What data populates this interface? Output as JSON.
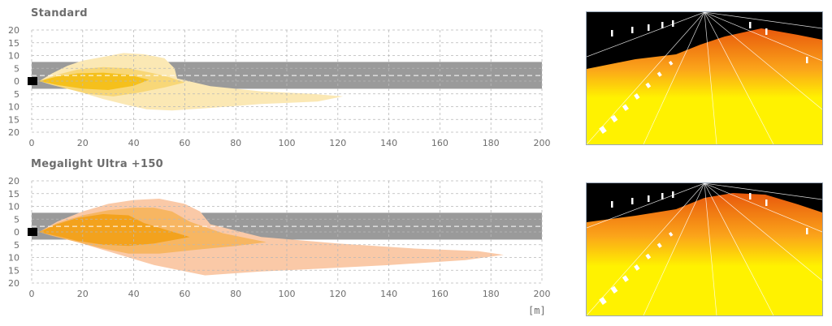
{
  "units_label": "[m]",
  "colors": {
    "road": "#9a9a9a",
    "grid": "#b8b8b8",
    "standard_outer": "#fbe8b4",
    "standard_mid": "#f8d777",
    "standard_inner": "#f5c01c",
    "ultra_outer": "#fac9a7",
    "ultra_mid": "#f7b662",
    "ultra_inner": "#f3a21d",
    "road_view_sky": "#000000",
    "road_view_light": "#fff200",
    "road_view_edge": "#e8580c"
  },
  "chart_data": [
    {
      "type": "area",
      "title": "Standard",
      "xlabel": "[m]",
      "ylabel": "",
      "xlim": [
        0,
        200
      ],
      "ylim": [
        -20,
        20
      ],
      "x_ticks": [
        0,
        20,
        40,
        60,
        80,
        100,
        120,
        140,
        160,
        180,
        200
      ],
      "y_ticks": [
        20,
        15,
        10,
        5,
        0,
        5,
        10,
        15,
        20
      ],
      "road_band": [
        -3,
        7.5
      ],
      "centerline": 2.2,
      "series": [
        {
          "level": "outer",
          "points": [
            [
              3,
              0
            ],
            [
              8,
              3
            ],
            [
              14,
              6
            ],
            [
              20,
              8
            ],
            [
              28,
              9.5
            ],
            [
              36,
              11
            ],
            [
              44,
              10.5
            ],
            [
              52,
              9
            ],
            [
              56,
              5
            ],
            [
              57,
              1
            ],
            [
              70,
              -2
            ],
            [
              90,
              -4
            ],
            [
              110,
              -5
            ],
            [
              122,
              -6
            ],
            [
              112,
              -8
            ],
            [
              90,
              -9
            ],
            [
              70,
              -10.5
            ],
            [
              55,
              -11.5
            ],
            [
              45,
              -11
            ],
            [
              38,
              -9.5
            ],
            [
              28,
              -7
            ],
            [
              18,
              -4
            ],
            [
              8,
              -1.5
            ],
            [
              3,
              0
            ]
          ]
        },
        {
          "level": "mid",
          "points": [
            [
              3,
              0
            ],
            [
              10,
              2.5
            ],
            [
              18,
              4.5
            ],
            [
              28,
              5.5
            ],
            [
              38,
              5
            ],
            [
              48,
              3
            ],
            [
              54,
              1.5
            ],
            [
              60,
              -0.5
            ],
            [
              52,
              -2.5
            ],
            [
              42,
              -4.5
            ],
            [
              32,
              -6
            ],
            [
              22,
              -5
            ],
            [
              12,
              -2.5
            ],
            [
              3,
              0
            ]
          ]
        },
        {
          "level": "inner",
          "points": [
            [
              3,
              0
            ],
            [
              10,
              1.8
            ],
            [
              18,
              3
            ],
            [
              28,
              3.3
            ],
            [
              38,
              2.5
            ],
            [
              46,
              0.5
            ],
            [
              40,
              -1.8
            ],
            [
              30,
              -3.5
            ],
            [
              20,
              -3
            ],
            [
              10,
              -1.5
            ],
            [
              3,
              0
            ]
          ]
        }
      ]
    },
    {
      "type": "area",
      "title": "Megalight Ultra +150",
      "xlabel": "[m]",
      "ylabel": "",
      "xlim": [
        0,
        200
      ],
      "ylim": [
        -20,
        20
      ],
      "x_ticks": [
        0,
        20,
        40,
        60,
        80,
        100,
        120,
        140,
        160,
        180,
        200
      ],
      "y_ticks": [
        20,
        15,
        10,
        5,
        0,
        5,
        10,
        15,
        20
      ],
      "road_band": [
        -3,
        7.5
      ],
      "centerline": 2.2,
      "series": [
        {
          "level": "outer",
          "points": [
            [
              3,
              0
            ],
            [
              10,
              4
            ],
            [
              20,
              8
            ],
            [
              30,
              11
            ],
            [
              40,
              12.5
            ],
            [
              50,
              13
            ],
            [
              60,
              11
            ],
            [
              66,
              8
            ],
            [
              70,
              3
            ],
            [
              90,
              -2
            ],
            [
              120,
              -4.5
            ],
            [
              150,
              -6.5
            ],
            [
              175,
              -7.5
            ],
            [
              185,
              -9
            ],
            [
              170,
              -11
            ],
            [
              140,
              -13
            ],
            [
              110,
              -14.5
            ],
            [
              90,
              -15.5
            ],
            [
              75,
              -16.5
            ],
            [
              68,
              -17
            ],
            [
              58,
              -15
            ],
            [
              48,
              -13
            ],
            [
              38,
              -10
            ],
            [
              28,
              -7
            ],
            [
              18,
              -4
            ],
            [
              8,
              -1.5
            ],
            [
              3,
              0
            ]
          ]
        },
        {
          "level": "mid",
          "points": [
            [
              3,
              0
            ],
            [
              10,
              3.5
            ],
            [
              20,
              6.5
            ],
            [
              30,
              8.5
            ],
            [
              40,
              9.5
            ],
            [
              48,
              9.5
            ],
            [
              55,
              8
            ],
            [
              62,
              4
            ],
            [
              75,
              -0.5
            ],
            [
              92,
              -4
            ],
            [
              80,
              -5.5
            ],
            [
              64,
              -7
            ],
            [
              50,
              -8.5
            ],
            [
              38,
              -8.5
            ],
            [
              28,
              -6.5
            ],
            [
              18,
              -4
            ],
            [
              8,
              -1.5
            ],
            [
              3,
              0
            ]
          ]
        },
        {
          "level": "inner",
          "points": [
            [
              3,
              0
            ],
            [
              10,
              3
            ],
            [
              18,
              5.5
            ],
            [
              28,
              7
            ],
            [
              38,
              6.5
            ],
            [
              44,
              3.5
            ],
            [
              52,
              1
            ],
            [
              62,
              -2
            ],
            [
              48,
              -4.5
            ],
            [
              38,
              -5.5
            ],
            [
              28,
              -5
            ],
            [
              18,
              -3.5
            ],
            [
              8,
              -1.2
            ],
            [
              3,
              0
            ]
          ]
        }
      ]
    }
  ],
  "road_views": [
    {
      "name": "Standard"
    },
    {
      "name": "Megalight Ultra +150"
    }
  ]
}
